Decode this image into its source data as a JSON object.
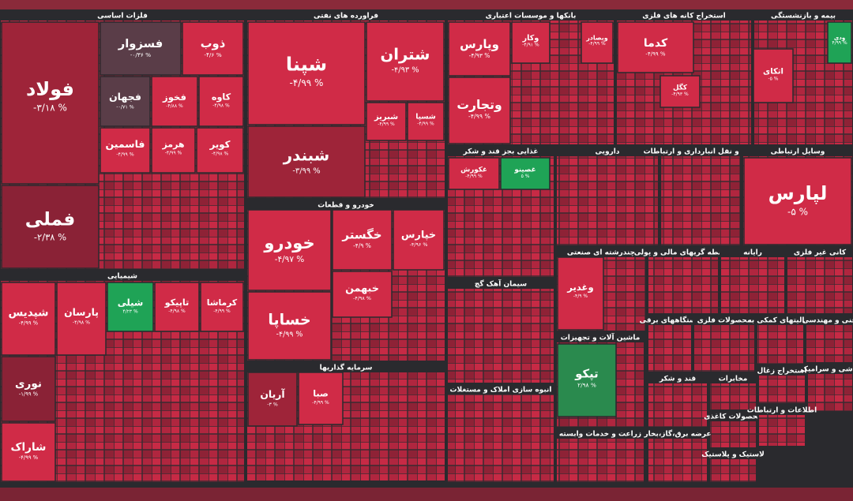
{
  "chart_data": {
    "type": "treemap",
    "sectors": [
      {
        "name": "فلزات اساسی",
        "tiles": [
          {
            "name": "فولاد",
            "value": -3.18,
            "value_label": "-۳/۱۸ %"
          },
          {
            "name": "فملی",
            "value": -2.38,
            "value_label": "-۲/۳۸ %"
          },
          {
            "name": "فسزوار",
            "value": -0.36,
            "value_label": "-۰/۳۶ %"
          },
          {
            "name": "ذوب",
            "value": -4.6,
            "value_label": "-۴/۶ %"
          },
          {
            "name": "فجهان",
            "value": -0.71,
            "value_label": "-۰/۷۱ %"
          },
          {
            "name": "فخوز",
            "value": -4.88,
            "value_label": "-۴/۸۸ %"
          },
          {
            "name": "کاوه",
            "value": -4.98,
            "value_label": "-۴/۹۸ %"
          },
          {
            "name": "فاسمین",
            "value": -4.99,
            "value_label": "-۴/۹۹ %"
          },
          {
            "name": "هرمز",
            "value": -4.99,
            "value_label": "-۴/۹۹ %"
          },
          {
            "name": "کویر",
            "value": -4.98,
            "value_label": "-۴/۹۸ %"
          }
        ]
      },
      {
        "name": "فراورده های نفتی",
        "tiles": [
          {
            "name": "شپنا",
            "value": -4.99,
            "value_label": "-۴/۹۹ %"
          },
          {
            "name": "شبندر",
            "value": -3.99,
            "value_label": "-۳/۹۹ %"
          },
          {
            "name": "شتران",
            "value": -4.93,
            "value_label": "-۴/۹۳ %"
          },
          {
            "name": "شبریز",
            "value": -4.99,
            "value_label": "-۴/۹۹ %"
          },
          {
            "name": "شسپا",
            "value": -4.99,
            "value_label": "-۴/۹۹ %"
          }
        ]
      },
      {
        "name": "بانکها و موسسات اعتباری",
        "tiles": [
          {
            "name": "وپارس",
            "value": -4.93,
            "value_label": "-۴/۹۳ %"
          },
          {
            "name": "وتجارت",
            "value": -4.99,
            "value_label": "-۴/۹۹ %"
          },
          {
            "name": "وکار",
            "value": -4.91,
            "value_label": "-۴/۹۱ %"
          },
          {
            "name": "وبصادر",
            "value": -4.99,
            "value_label": "-۴/۹۹ %"
          }
        ]
      },
      {
        "name": "استخراج کانه های فلزی",
        "tiles": [
          {
            "name": "کدما",
            "value": -4.99,
            "value_label": "-۴/۹۹ %"
          },
          {
            "name": "کگل",
            "value": -4.93,
            "value_label": "-۴/۹۳ %"
          }
        ]
      },
      {
        "name": "بیمه و بازنشستگی",
        "tiles": [
          {
            "name": "اتکای",
            "value": -5,
            "value_label": "-۵ %"
          },
          {
            "name": "ودی",
            "value": 4.99,
            "value_label": "۴/۹۹ %"
          }
        ]
      },
      {
        "name": "خودرو و قطعات",
        "tiles": [
          {
            "name": "خودرو",
            "value": -4.97,
            "value_label": "-۴/۹۷ %"
          },
          {
            "name": "خساپا",
            "value": -4.99,
            "value_label": "-۴/۹۹ %"
          },
          {
            "name": "خگستر",
            "value": -4.9,
            "value_label": "-۴/۹ %"
          },
          {
            "name": "خپارس",
            "value": -4.96,
            "value_label": "-۴/۹۶ %"
          },
          {
            "name": "خبهمن",
            "value": -4.98,
            "value_label": "-۴/۹۸ %"
          }
        ]
      },
      {
        "name": "سرمایه گذاریها",
        "tiles": [
          {
            "name": "آریان",
            "value": -3,
            "value_label": "-۳ %"
          },
          {
            "name": "صبا",
            "value": -4.99,
            "value_label": "-۴/۹۹ %"
          }
        ]
      },
      {
        "name": "شیمیایی",
        "tiles": [
          {
            "name": "شپدیس",
            "value": -4.99,
            "value_label": "-۴/۹۹ %"
          },
          {
            "name": "نوری",
            "value": -1.99,
            "value_label": "-۱/۹۹ %"
          },
          {
            "name": "شاراک",
            "value": -4.99,
            "value_label": "-۴/۹۹ %"
          },
          {
            "name": "پارسان",
            "value": -4.98,
            "value_label": "-۴/۹۸ %"
          },
          {
            "name": "شیلی",
            "value": 4.23,
            "value_label": "۴/۲۳ %"
          },
          {
            "name": "تاپیکو",
            "value": -4.98,
            "value_label": "-۴/۹۸ %"
          },
          {
            "name": "کرماشا",
            "value": -4.99,
            "value_label": "-۴/۹۹ %"
          }
        ]
      },
      {
        "name": "غذایی بجز قند و شکر",
        "tiles": [
          {
            "name": "غکورش",
            "value": -4.99,
            "value_label": "-۴/۹۹ %"
          },
          {
            "name": "غصینو",
            "value": 5,
            "value_label": "۵ %"
          }
        ]
      },
      {
        "name": "دارویی",
        "tiles": []
      },
      {
        "name": "حمل و نقل انبارداری و ارتباطات",
        "tiles": []
      },
      {
        "name": "وسایل ارتباطی",
        "tiles": [
          {
            "name": "لپارس",
            "value": -5,
            "value_label": "-۵ %"
          }
        ]
      },
      {
        "name": "چندرشته ای صنعتی",
        "tiles": [
          {
            "name": "وغدیر",
            "value": -4.9,
            "value_label": "-۴/۹ %"
          }
        ]
      },
      {
        "name": "ماشین آلات و تجهیزات",
        "tiles": [
          {
            "name": "تپکو",
            "value": 2.98,
            "value_label": "۲/۹۸ %"
          }
        ]
      },
      {
        "name": "سیمان آهک گچ",
        "tiles": []
      },
      {
        "name": "انبوه سازی املاک و مستغلات",
        "tiles": []
      },
      {
        "name": "زراعت و خدمات وابسته",
        "tiles": []
      },
      {
        "name": "واسطه گریهای مالی و پولی",
        "tiles": []
      },
      {
        "name": "رایانه",
        "tiles": []
      },
      {
        "name": "کانی غیر فلزی",
        "tiles": []
      },
      {
        "name": "دستگاههای برقی",
        "tiles": []
      },
      {
        "name": "محصولات فلزی",
        "tiles": []
      },
      {
        "name": "فعالیتهای کمکی به",
        "tiles": []
      },
      {
        "name": "فنی و مهندسی",
        "tiles": []
      },
      {
        "name": "قند و شکر",
        "tiles": []
      },
      {
        "name": "مخابرات",
        "tiles": []
      },
      {
        "name": "استخراج زغال",
        "tiles": []
      },
      {
        "name": "کاشی و سرامیک",
        "tiles": []
      },
      {
        "name": "محصولات کاغذی",
        "tiles": []
      },
      {
        "name": "عرضه برق،گاز،بخار",
        "tiles": []
      },
      {
        "name": "لاستیک و پلاستیک",
        "tiles": []
      },
      {
        "name": "اطلاعات و ارتباطات",
        "tiles": []
      }
    ]
  }
}
